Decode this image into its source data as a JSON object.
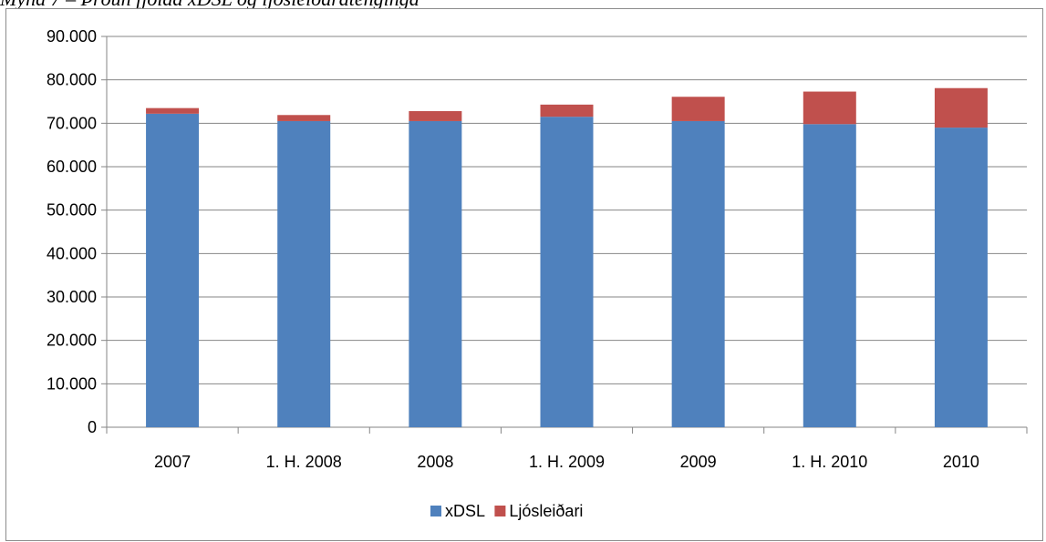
{
  "caption": "Mynd 7 – Þróun fjölda xDSL og ljósleiðaratenginga",
  "chart_data": {
    "type": "bar",
    "stacked": true,
    "categories": [
      "2007",
      "1. H. 2008",
      "2008",
      "1. H. 2009",
      "2009",
      "1. H. 2010",
      "2010"
    ],
    "series": [
      {
        "name": "xDSL",
        "color": "#4f81bd",
        "values": [
          72200,
          70500,
          70500,
          71500,
          70500,
          69800,
          69000
        ]
      },
      {
        "name": "Ljósleiðari",
        "color": "#c0504d",
        "values": [
          1300,
          1400,
          2300,
          2800,
          5600,
          7500,
          9100
        ]
      }
    ],
    "yticks": [
      "0",
      "10.000",
      "20.000",
      "30.000",
      "40.000",
      "50.000",
      "60.000",
      "70.000",
      "80.000",
      "90.000"
    ],
    "ylim": [
      0,
      90000
    ],
    "grid": true,
    "legend": "bottom",
    "xlabel": "",
    "ylabel": ""
  }
}
